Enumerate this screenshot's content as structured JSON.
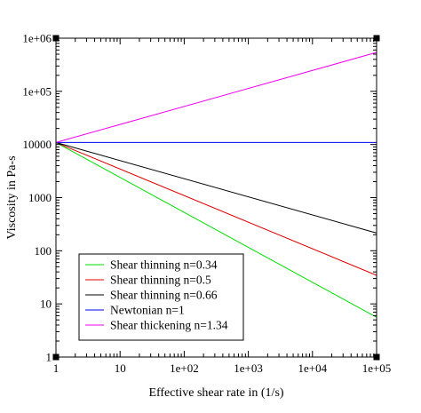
{
  "chart_data": {
    "type": "line",
    "xlabel": "Effective shear rate in (1/s)",
    "ylabel": "Viscosity in Pa-s",
    "x_scale": "log",
    "y_scale": "log",
    "xlim": [
      1,
      100000
    ],
    "ylim": [
      1,
      1000000
    ],
    "x_ticks": [
      {
        "value": 1,
        "label": "1"
      },
      {
        "value": 10,
        "label": "10"
      },
      {
        "value": 100,
        "label": "1e+02"
      },
      {
        "value": 1000,
        "label": "1e+03"
      },
      {
        "value": 10000,
        "label": "1e+04"
      },
      {
        "value": 100000,
        "label": "1e+05"
      }
    ],
    "y_ticks": [
      {
        "value": 1,
        "label": "1"
      },
      {
        "value": 10,
        "label": "10"
      },
      {
        "value": 100,
        "label": "100"
      },
      {
        "value": 1000,
        "label": "1000"
      },
      {
        "value": 10000,
        "label": "10000"
      },
      {
        "value": 100000,
        "label": "1e+05"
      },
      {
        "value": 1000000,
        "label": "1e+06"
      }
    ],
    "grid": false,
    "legend_position": "bottom-left",
    "x": [
      1,
      100000
    ],
    "series": [
      {
        "name": "Shear thinning n=0.34",
        "color": "#00dd00",
        "values": [
          10900,
          5.6
        ]
      },
      {
        "name": "Shear thinning n=0.5",
        "color": "#e00000",
        "values": [
          10900,
          34.5
        ]
      },
      {
        "name": "Shear thinning n=0.66",
        "color": "#000000",
        "values": [
          10900,
          215
        ]
      },
      {
        "name": "Newtonian n=1",
        "color": "#0000ee",
        "values": [
          10900,
          10900
        ]
      },
      {
        "name": "Shear thickening n=1.34",
        "color": "#ee00ee",
        "values": [
          10900,
          540000
        ]
      }
    ]
  }
}
